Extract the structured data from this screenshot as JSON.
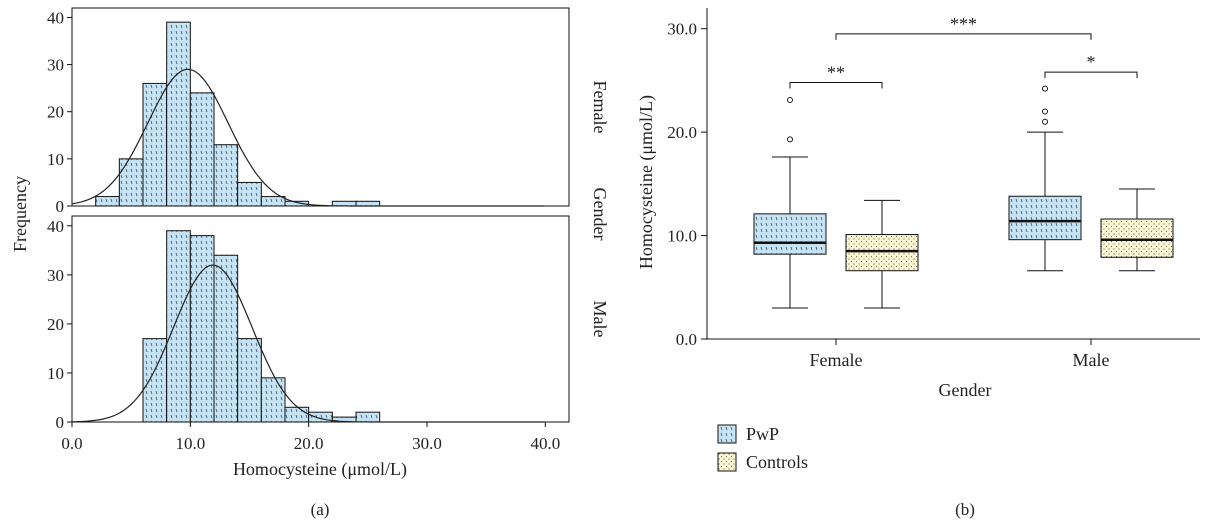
{
  "panel_a": {
    "caption": "(a)",
    "ylabel": "Frequency",
    "xlabel": "Homocysteine (μmol/L)",
    "facet_title": "Gender",
    "facets": [
      "Female",
      "Male"
    ],
    "y_ticks": [
      "0",
      "10",
      "20",
      "30",
      "40"
    ],
    "x_ticks": [
      "0.0",
      "10.0",
      "20.0",
      "30.0",
      "40.0"
    ]
  },
  "panel_b": {
    "caption": "(b)",
    "ylabel": "Homocysteine (μmol/L)",
    "xlabel": "Gender",
    "y_ticks": [
      "0.0",
      "10.0",
      "20.0",
      "30.0"
    ],
    "x_ticks": [
      "Female",
      "Male"
    ],
    "legend": [
      "PwP",
      "Controls"
    ],
    "significance": [
      "**",
      "*",
      "***"
    ]
  },
  "colors": {
    "pwp": "#c5e3f4",
    "controls": "#fbf6d6",
    "stroke": "#111111"
  },
  "chart_data": [
    {
      "type": "bar",
      "facet": "Female",
      "bin_edges": [
        2,
        4,
        6,
        8,
        10,
        12,
        14,
        16,
        18,
        20,
        22,
        24,
        26
      ],
      "values": [
        2,
        10,
        26,
        39,
        24,
        13,
        5,
        2,
        1,
        0,
        1,
        1
      ],
      "normal_curve": {
        "mean": 9.8,
        "sd": 3.4,
        "peak": 29
      },
      "xlim": [
        0,
        42
      ],
      "ylim": [
        0,
        42
      ],
      "xlabel": "Homocysteine (μmol/L)",
      "ylabel": "Frequency"
    },
    {
      "type": "bar",
      "facet": "Male",
      "bin_edges": [
        6,
        8,
        10,
        12,
        14,
        16,
        18,
        20,
        22,
        24,
        26
      ],
      "values": [
        17,
        39,
        38,
        34,
        17,
        9,
        3,
        2,
        1,
        2
      ],
      "normal_curve": {
        "mean": 11.9,
        "sd": 3.3,
        "peak": 32
      },
      "xlim": [
        0,
        42
      ],
      "ylim": [
        0,
        42
      ],
      "xlabel": "Homocysteine (μmol/L)",
      "ylabel": "Frequency"
    },
    {
      "type": "boxplot",
      "categories": [
        "Female",
        "Male"
      ],
      "ylim": [
        0,
        32
      ],
      "xlabel": "Gender",
      "ylabel": "Homocysteine (μmol/L)",
      "series": [
        {
          "name": "PwP",
          "boxes": [
            {
              "category": "Female",
              "whisker_low": 3.0,
              "q1": 8.2,
              "median": 9.3,
              "q3": 12.1,
              "whisker_high": 17.6,
              "outliers": [
                19.3,
                23.1
              ]
            },
            {
              "category": "Male",
              "whisker_low": 6.6,
              "q1": 9.6,
              "median": 11.4,
              "q3": 13.8,
              "whisker_high": 20.0,
              "outliers": [
                21.0,
                22.0,
                24.2
              ]
            }
          ]
        },
        {
          "name": "Controls",
          "boxes": [
            {
              "category": "Female",
              "whisker_low": 3.0,
              "q1": 6.6,
              "median": 8.5,
              "q3": 10.1,
              "whisker_high": 13.4,
              "outliers": []
            },
            {
              "category": "Male",
              "whisker_low": 6.6,
              "q1": 7.9,
              "median": 9.6,
              "q3": 11.6,
              "whisker_high": 14.5,
              "outliers": []
            }
          ]
        }
      ],
      "brackets": [
        {
          "label": "**",
          "between": [
            "Female PwP",
            "Female Controls"
          ],
          "y": 24.8
        },
        {
          "label": "*",
          "between": [
            "Male PwP",
            "Male Controls"
          ],
          "y": 25.8
        },
        {
          "label": "***",
          "between": [
            "Female",
            "Male"
          ],
          "y": 29.5
        }
      ],
      "legend_position": "bottom-left"
    }
  ]
}
